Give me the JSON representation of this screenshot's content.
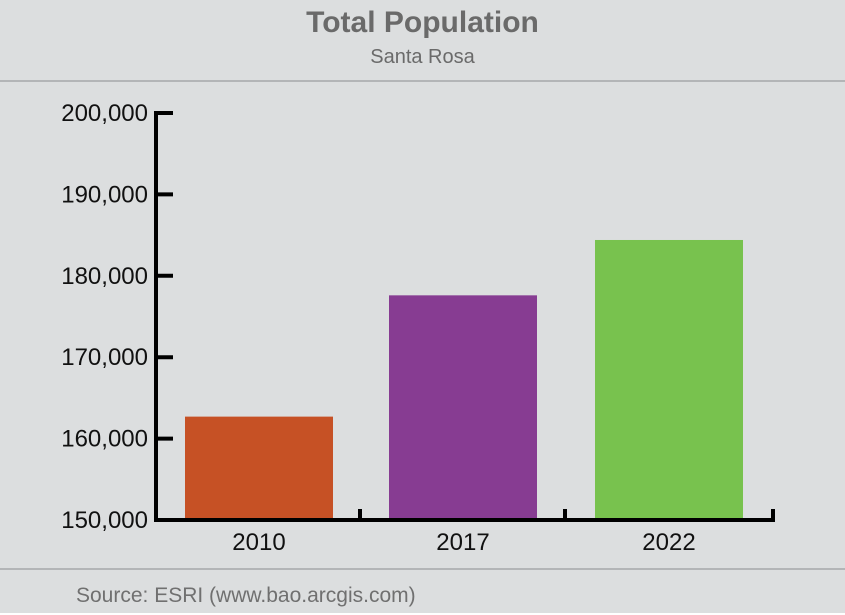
{
  "chart_data": {
    "type": "bar",
    "title": "Total Population",
    "subtitle": "Santa Rosa",
    "categories": [
      "2010",
      "2017",
      "2022"
    ],
    "values": [
      162700,
      177600,
      184400
    ],
    "bar_colors": [
      "#c65125",
      "#873c92",
      "#78c24e"
    ],
    "ylim": [
      150000,
      200000
    ],
    "yticks": [
      150000,
      160000,
      170000,
      180000,
      190000,
      200000
    ],
    "ytick_labels": [
      "150,000",
      "160,000",
      "170,000",
      "180,000",
      "190,000",
      "200,000"
    ],
    "xlabel": "",
    "ylabel": "",
    "grid": false,
    "legend": "none",
    "source": "Source: ESRI (www.bao.arcgis.com)"
  }
}
